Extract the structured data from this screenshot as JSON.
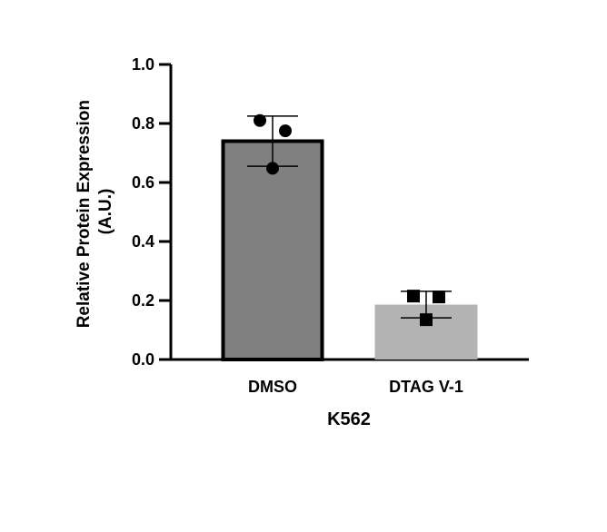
{
  "chart_data": {
    "type": "bar",
    "categories": [
      "DMSO",
      "DTAG V-1"
    ],
    "values": [
      0.74,
      0.186
    ],
    "error": [
      0.085,
      0.045
    ],
    "points": [
      [
        0.81,
        0.775,
        0.648
      ],
      [
        0.215,
        0.212,
        0.135
      ]
    ],
    "point_markers": [
      "circle",
      "square"
    ],
    "colors": {
      "bar1": "#808080",
      "bar1_edge": "#000000",
      "bar2": "#b3b3b3",
      "points": "#000000"
    },
    "ylabel_line1": "Relative Protein Expression",
    "ylabel_line2": "(A.U.)",
    "xlabel": "K562",
    "ylim": [
      0,
      1.0
    ],
    "yticks": [
      "0.0",
      "0.2",
      "0.4",
      "0.6",
      "0.8",
      "1.0"
    ],
    "grid": false
  }
}
